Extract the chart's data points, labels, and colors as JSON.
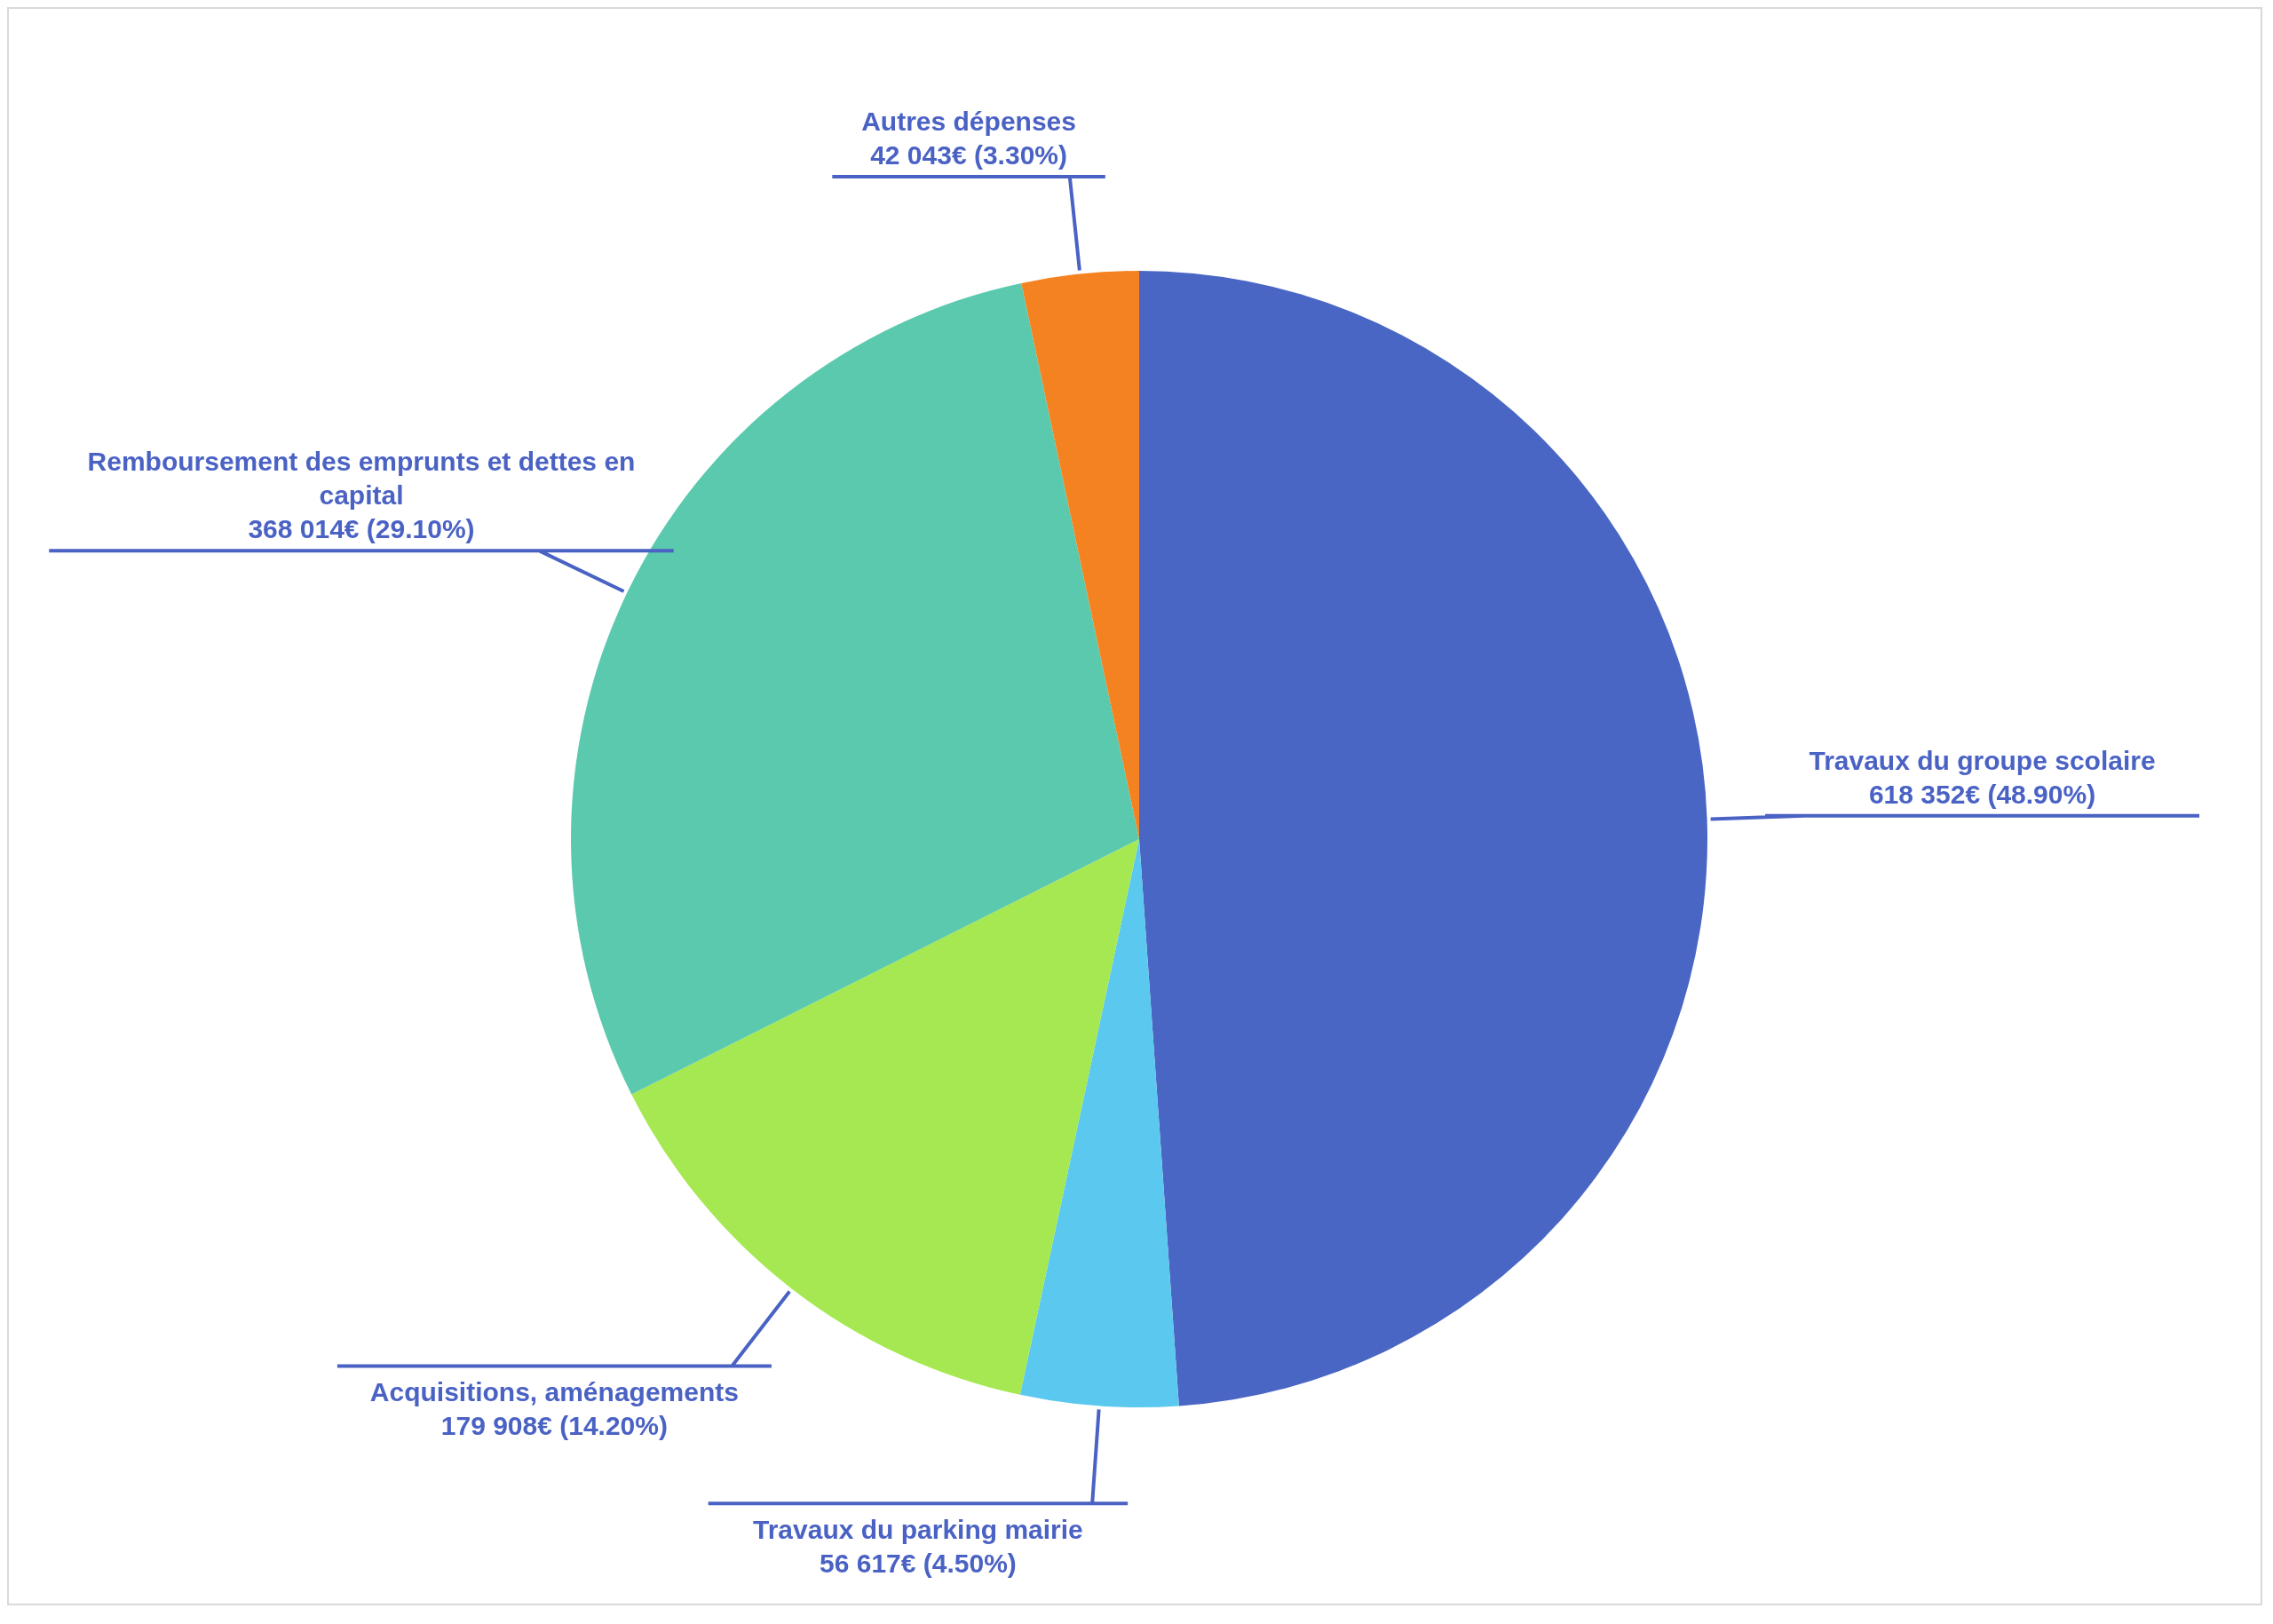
{
  "chart_data": {
    "type": "pie",
    "categories": [
      "Travaux du groupe scolaire",
      "Travaux du parking mairie",
      "Acquisitions, aménagements",
      "Remboursement des emprunts et dettes en capital",
      "Autres dépenses"
    ],
    "values": [
      618352,
      56617,
      179908,
      368014,
      42043
    ],
    "colors": [
      "#4a66c4",
      "#5bc8ef",
      "#a6e852",
      "#5bc9ae",
      "#f58220"
    ],
    "value_labels": [
      "618 352€ (48.90%)",
      "56 617€ (4.50%)",
      "179 908€ (14.20%)",
      "368 014€ (29.10%)",
      "42 043€ (3.30%)"
    ]
  }
}
